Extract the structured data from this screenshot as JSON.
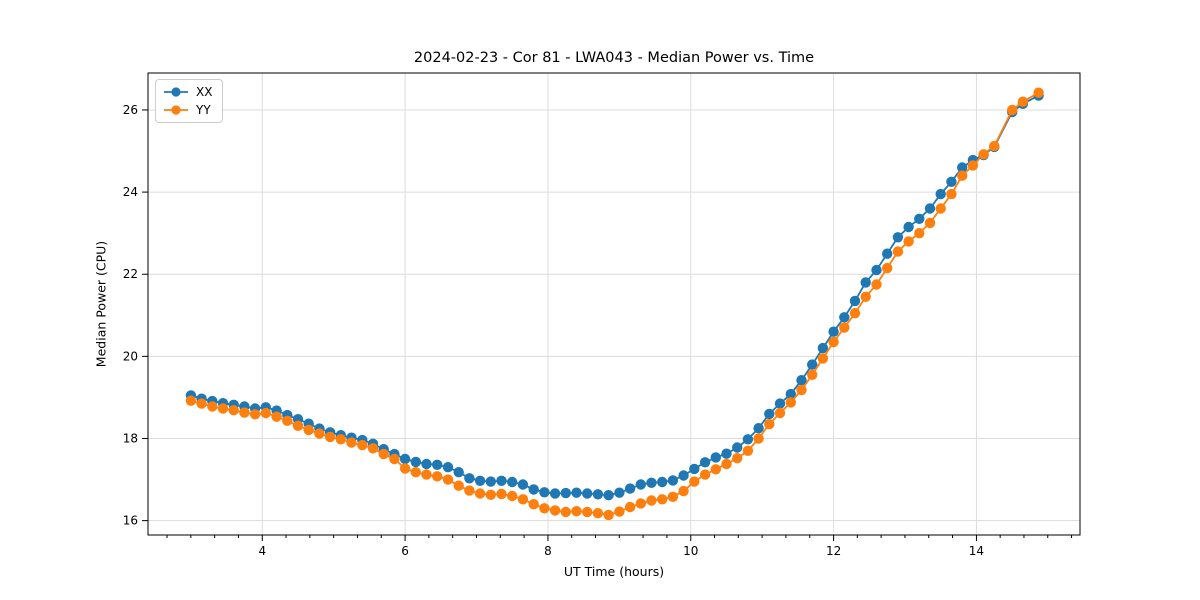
{
  "chart_data": {
    "type": "line",
    "title": "2024-02-23 - Cor 81 - LWA043 - Median Power vs. Time",
    "xlabel": "UT Time (hours)",
    "ylabel": "Median Power (CPU)",
    "xlim": [
      2.4,
      15.45
    ],
    "ylim": [
      15.65,
      26.9
    ],
    "xticks": [
      4,
      6,
      8,
      10,
      12,
      14
    ],
    "yticks": [
      16,
      18,
      20,
      22,
      24,
      26
    ],
    "x_minor_tick_step": 0.3333,
    "grid": true,
    "legend_position": "upper left",
    "grid_color": "#dcdcdc",
    "x": [
      3.0,
      3.15,
      3.3,
      3.45,
      3.6,
      3.75,
      3.9,
      4.05,
      4.2,
      4.35,
      4.5,
      4.65,
      4.8,
      4.95,
      5.1,
      5.25,
      5.4,
      5.55,
      5.7,
      5.85,
      6.0,
      6.15,
      6.3,
      6.45,
      6.6,
      6.75,
      6.9,
      7.05,
      7.2,
      7.35,
      7.5,
      7.65,
      7.8,
      7.95,
      8.1,
      8.25,
      8.4,
      8.55,
      8.7,
      8.85,
      9.0,
      9.15,
      9.3,
      9.45,
      9.6,
      9.75,
      9.9,
      10.05,
      10.2,
      10.35,
      10.5,
      10.65,
      10.8,
      10.95,
      11.1,
      11.25,
      11.4,
      11.55,
      11.7,
      11.85,
      12.0,
      12.15,
      12.3,
      12.45,
      12.6,
      12.75,
      12.9,
      13.05,
      13.2,
      13.35,
      13.5,
      13.65,
      13.8,
      13.95,
      14.1,
      14.25,
      14.5,
      14.65,
      14.87
    ],
    "series": [
      {
        "name": "XX",
        "color": "#1f77b4",
        "marker": "circle",
        "values": [
          19.05,
          18.97,
          18.91,
          18.86,
          18.82,
          18.78,
          18.73,
          18.76,
          18.68,
          18.57,
          18.47,
          18.36,
          18.24,
          18.15,
          18.08,
          18.02,
          17.96,
          17.87,
          17.74,
          17.62,
          17.5,
          17.43,
          17.38,
          17.36,
          17.3,
          17.18,
          17.03,
          16.97,
          16.95,
          16.97,
          16.94,
          16.88,
          16.76,
          16.69,
          16.66,
          16.67,
          16.68,
          16.66,
          16.64,
          16.62,
          16.68,
          16.78,
          16.88,
          16.92,
          16.94,
          16.98,
          17.1,
          17.26,
          17.42,
          17.54,
          17.63,
          17.78,
          17.98,
          18.25,
          18.6,
          18.85,
          19.08,
          19.42,
          19.8,
          20.2,
          20.6,
          20.95,
          21.35,
          21.8,
          22.1,
          22.5,
          22.9,
          23.15,
          23.35,
          23.6,
          23.95,
          24.25,
          24.6,
          24.78,
          24.9,
          25.1,
          25.95,
          26.15,
          26.35
        ]
      },
      {
        "name": "YY",
        "color": "#ff7f0e",
        "marker": "circle",
        "values": [
          18.92,
          18.85,
          18.78,
          18.73,
          18.69,
          18.63,
          18.59,
          18.62,
          18.53,
          18.43,
          18.31,
          18.21,
          18.12,
          18.04,
          17.98,
          17.9,
          17.84,
          17.76,
          17.62,
          17.5,
          17.27,
          17.18,
          17.12,
          17.08,
          17.0,
          16.85,
          16.73,
          16.66,
          16.63,
          16.65,
          16.6,
          16.52,
          16.4,
          16.3,
          16.25,
          16.21,
          16.23,
          16.21,
          16.18,
          16.14,
          16.22,
          16.33,
          16.42,
          16.49,
          16.52,
          16.58,
          16.72,
          16.95,
          17.12,
          17.25,
          17.38,
          17.52,
          17.7,
          18.0,
          18.35,
          18.62,
          18.88,
          19.18,
          19.55,
          19.95,
          20.35,
          20.7,
          21.05,
          21.45,
          21.75,
          22.15,
          22.55,
          22.8,
          23.0,
          23.25,
          23.6,
          23.95,
          24.4,
          24.65,
          24.92,
          25.12,
          26.0,
          26.2,
          26.42
        ]
      }
    ]
  }
}
